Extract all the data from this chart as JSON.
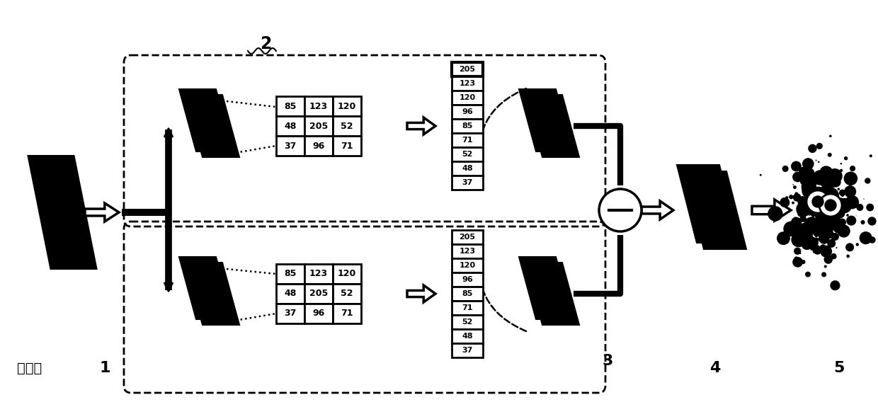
{
  "bg_color": "#ffffff",
  "label_preprocess": "处理前",
  "label_1": "1",
  "label_2": "2",
  "label_3": "3",
  "label_4": "4",
  "label_5": "5",
  "grid_values": [
    [
      "85",
      "123",
      "120"
    ],
    [
      "48",
      "205",
      "52"
    ],
    [
      "37",
      "96",
      "71"
    ]
  ],
  "sorted_values": [
    "205",
    "123",
    "120",
    "96",
    "85",
    "71",
    "52",
    "48",
    "37"
  ],
  "fig_width": 12.4,
  "fig_height": 5.92,
  "dpi": 100
}
